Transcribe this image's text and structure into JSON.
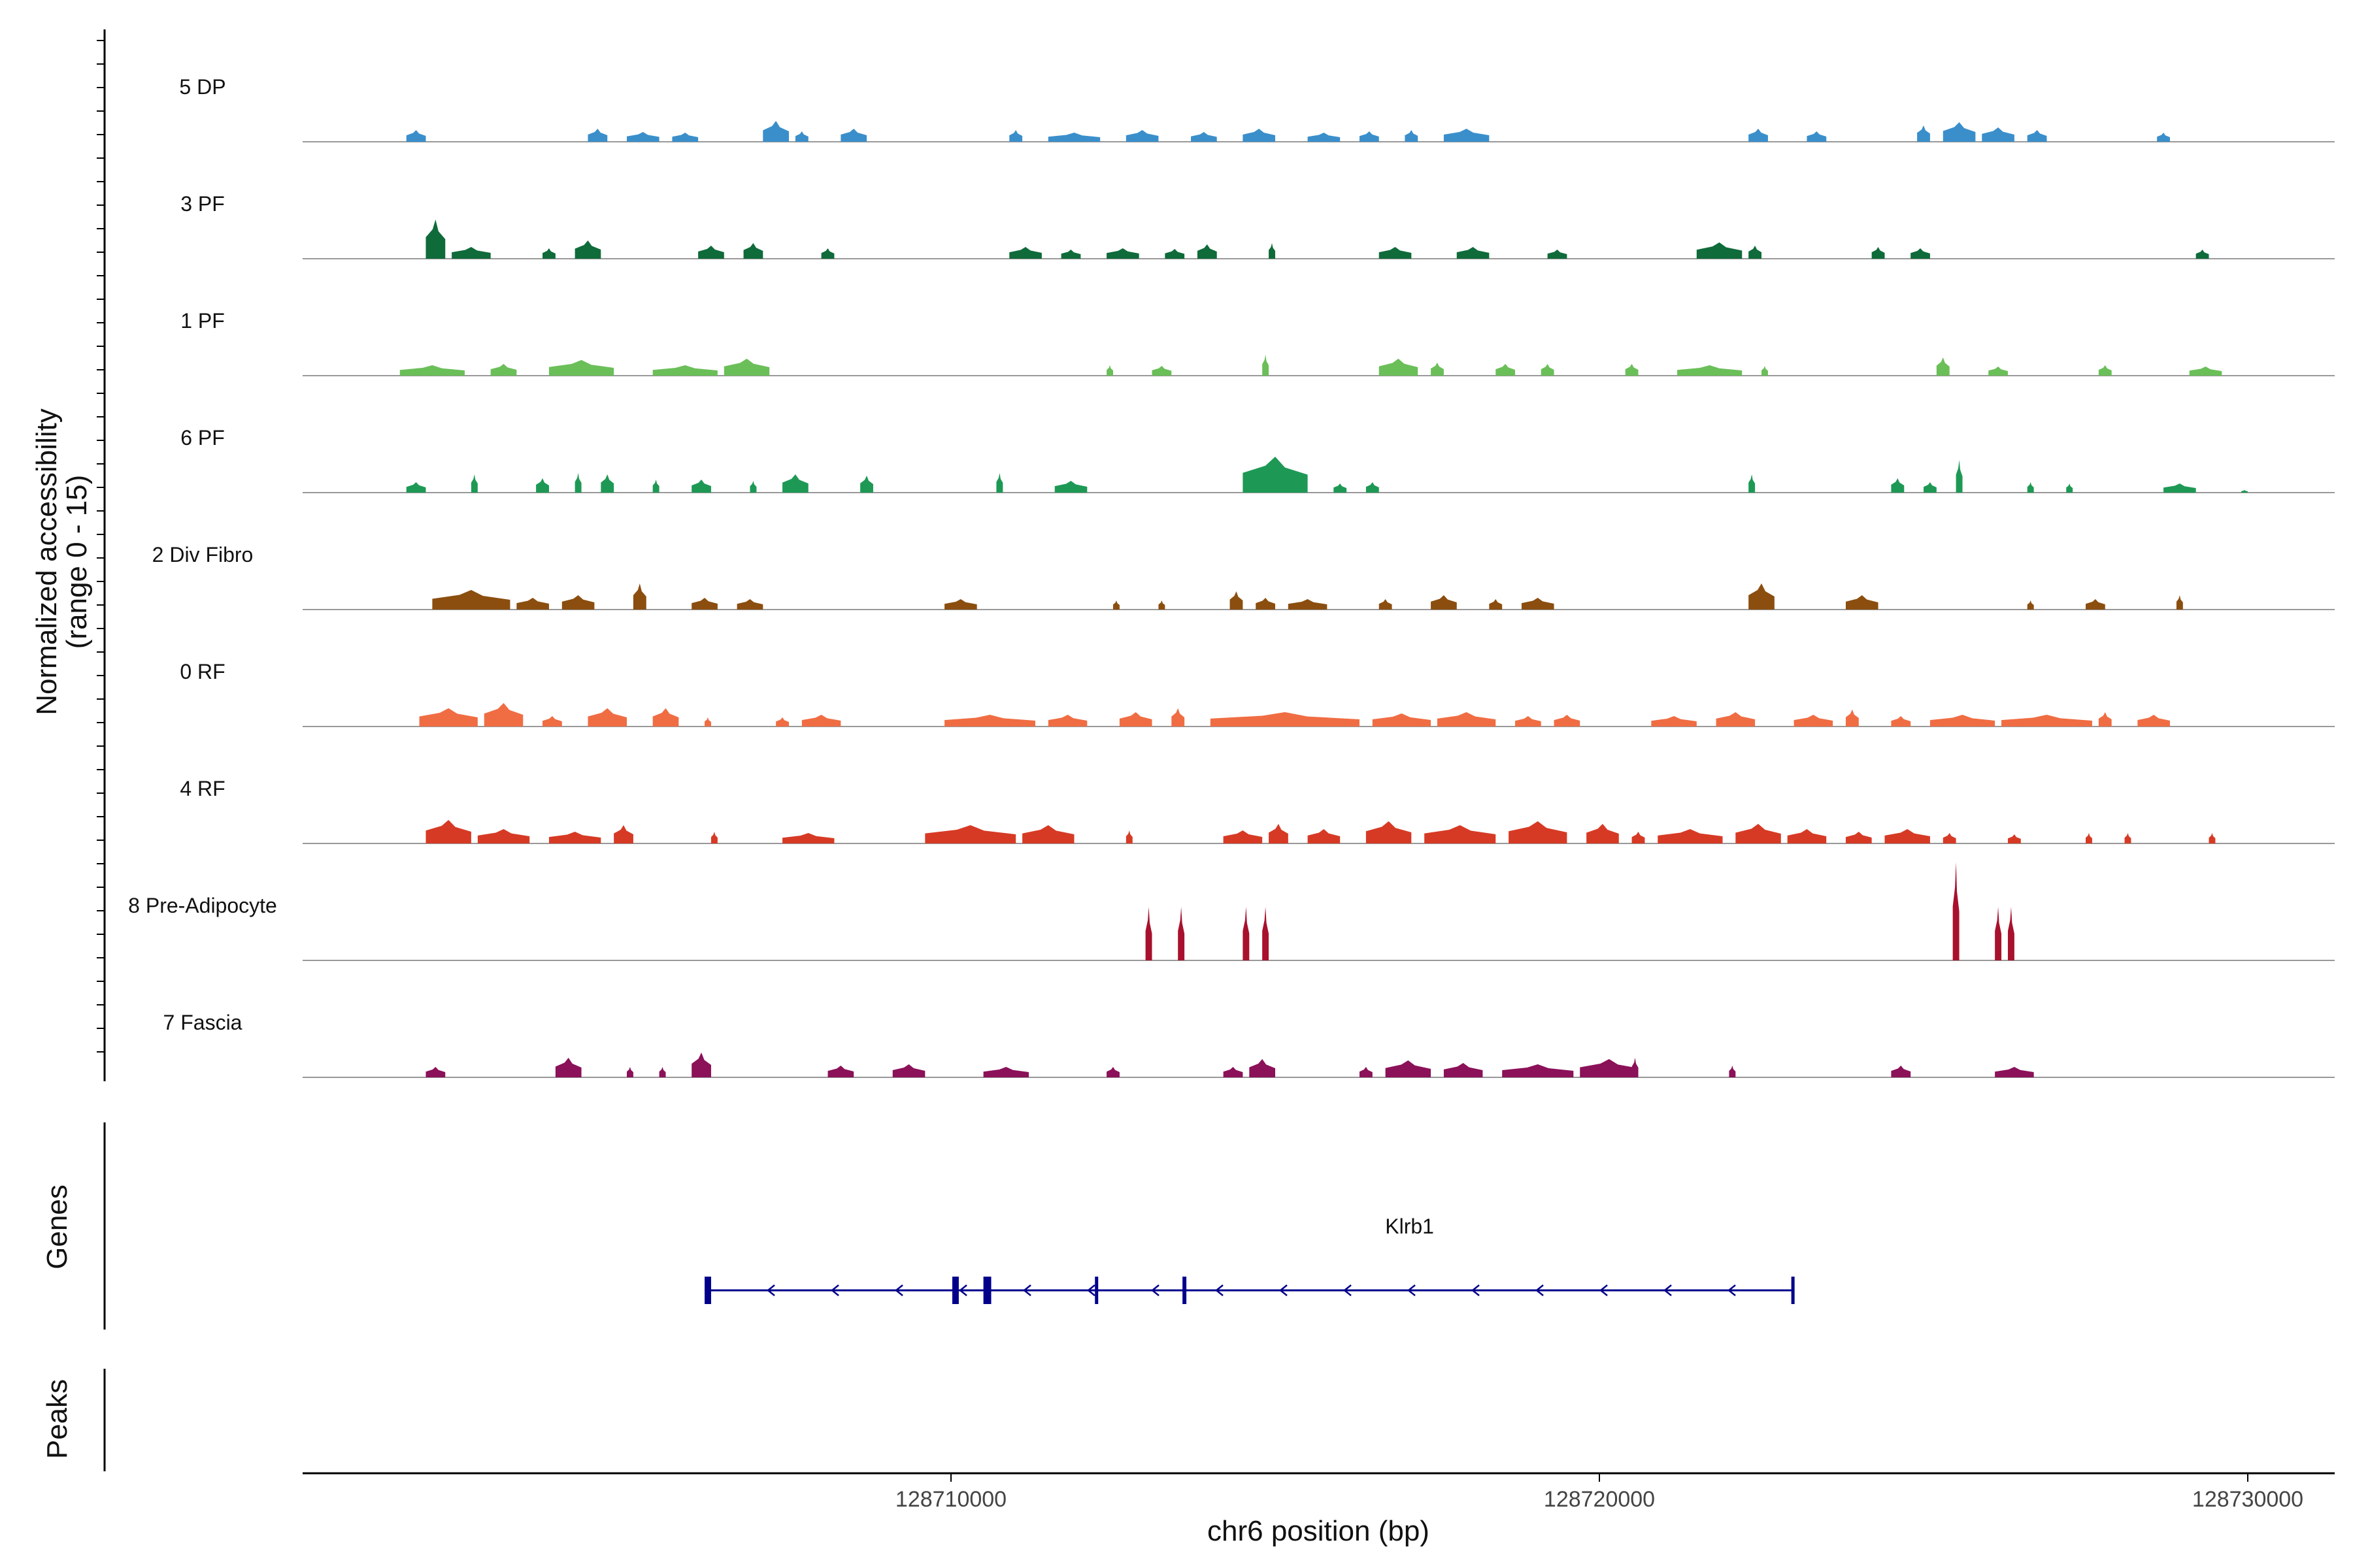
{
  "chart_data": {
    "type": "area",
    "title": "",
    "ylabel_line1": "Normalized accessibility",
    "ylabel_line2": "(range 0 - 15)",
    "ylim": [
      0,
      15
    ],
    "xlabel": "chr6 position (bp)",
    "xlim": [
      128700000,
      128731500
    ],
    "xticks": [
      128710000,
      128720000,
      128730000
    ],
    "xtick_labels": [
      "128710000",
      "128720000",
      "128730000"
    ],
    "series": [
      {
        "name": "5 DP",
        "color": "#3A8FCB",
        "peaks": [
          [
            128701600,
            128701900,
            1.8
          ],
          [
            128704400,
            128704700,
            2.0
          ],
          [
            128705000,
            128705500,
            1.5
          ],
          [
            128705700,
            128706100,
            1.4
          ],
          [
            128707100,
            128707500,
            3.2
          ],
          [
            128707600,
            128707800,
            1.6
          ],
          [
            128708300,
            128708700,
            2.0
          ],
          [
            128710900,
            128711100,
            1.8
          ],
          [
            128711500,
            128712300,
            1.4
          ],
          [
            128712700,
            128713200,
            1.8
          ],
          [
            128713700,
            128714100,
            1.5
          ],
          [
            128714500,
            128715000,
            2.0
          ],
          [
            128715500,
            128716000,
            1.4
          ],
          [
            128716300,
            128716600,
            1.6
          ],
          [
            128717000,
            128717200,
            1.8
          ],
          [
            128717600,
            128718300,
            2.0
          ],
          [
            128722300,
            128722600,
            2.0
          ],
          [
            128723200,
            128723500,
            1.6
          ],
          [
            128724900,
            128725100,
            2.5
          ],
          [
            128725300,
            128725800,
            3.0
          ],
          [
            128725900,
            128726400,
            2.2
          ],
          [
            128726600,
            128726900,
            1.8
          ],
          [
            128728600,
            128728800,
            1.4
          ]
        ]
      },
      {
        "name": "3 PF",
        "color": "#0F6B3A",
        "peaks": [
          [
            128701900,
            128702200,
            6.0
          ],
          [
            128702300,
            128702900,
            1.8
          ],
          [
            128703700,
            128703900,
            1.6
          ],
          [
            128704200,
            128704600,
            2.8
          ],
          [
            128706100,
            128706500,
            2.0
          ],
          [
            128706800,
            128707100,
            2.4
          ],
          [
            128708000,
            128708200,
            1.6
          ],
          [
            128710900,
            128711400,
            1.8
          ],
          [
            128711700,
            128712000,
            1.4
          ],
          [
            128712400,
            128712900,
            1.6
          ],
          [
            128713300,
            128713600,
            1.5
          ],
          [
            128713800,
            128714100,
            2.2
          ],
          [
            128714900,
            128715000,
            2.4
          ],
          [
            128716600,
            128717100,
            1.8
          ],
          [
            128717800,
            128718300,
            1.8
          ],
          [
            128719200,
            128719500,
            1.4
          ],
          [
            128721500,
            128722200,
            2.5
          ],
          [
            128722300,
            128722500,
            2.0
          ],
          [
            128724200,
            128724400,
            1.8
          ],
          [
            128724800,
            128725100,
            1.6
          ],
          [
            128729200,
            128729400,
            1.4
          ]
        ]
      },
      {
        "name": "1 PF",
        "color": "#6BBF59",
        "peaks": [
          [
            128701500,
            128702500,
            1.6
          ],
          [
            128702900,
            128703300,
            1.8
          ],
          [
            128703800,
            128704800,
            2.4
          ],
          [
            128705400,
            128706400,
            1.6
          ],
          [
            128706500,
            128707200,
            2.6
          ],
          [
            128712400,
            128712500,
            1.6
          ],
          [
            128713100,
            128713400,
            1.5
          ],
          [
            128714800,
            128714900,
            3.2
          ],
          [
            128716600,
            128717200,
            2.6
          ],
          [
            128717400,
            128717600,
            2.0
          ],
          [
            128718400,
            128718700,
            1.8
          ],
          [
            128719100,
            128719300,
            1.8
          ],
          [
            128720400,
            128720600,
            1.8
          ],
          [
            128721200,
            128722200,
            1.6
          ],
          [
            128722500,
            128722600,
            1.5
          ],
          [
            128725200,
            128725400,
            2.8
          ],
          [
            128726000,
            128726300,
            1.4
          ],
          [
            128727700,
            128727900,
            1.6
          ],
          [
            128729100,
            128729600,
            1.4
          ]
        ]
      },
      {
        "name": "6 PF",
        "color": "#1E9955",
        "peaks": [
          [
            128701600,
            128701900,
            1.6
          ],
          [
            128702600,
            128702700,
            2.8
          ],
          [
            128703600,
            128703800,
            2.2
          ],
          [
            128704200,
            128704300,
            3.0
          ],
          [
            128704600,
            128704800,
            2.8
          ],
          [
            128705400,
            128705500,
            2.0
          ],
          [
            128706000,
            128706300,
            2.0
          ],
          [
            128706900,
            128707000,
            1.8
          ],
          [
            128707400,
            128707800,
            2.8
          ],
          [
            128708600,
            128708800,
            2.6
          ],
          [
            128710700,
            128710800,
            3.0
          ],
          [
            128711600,
            128712100,
            1.8
          ],
          [
            128714500,
            128715500,
            5.5
          ],
          [
            128715900,
            128716100,
            1.4
          ],
          [
            128716400,
            128716600,
            1.6
          ],
          [
            128722300,
            128722400,
            2.8
          ],
          [
            128724500,
            128724700,
            2.2
          ],
          [
            128725000,
            128725200,
            1.6
          ],
          [
            128725500,
            128725600,
            5.0
          ],
          [
            128726600,
            128726700,
            1.6
          ],
          [
            128727200,
            128727300,
            1.4
          ],
          [
            128728700,
            128729200,
            1.4
          ],
          [
            128729900,
            128730000,
            0.4
          ]
        ]
      },
      {
        "name": "2 Div Fibro",
        "color": "#8B4E0F",
        "peaks": [
          [
            128702000,
            128703200,
            3.0
          ],
          [
            128703300,
            128703800,
            1.8
          ],
          [
            128704000,
            128704500,
            2.2
          ],
          [
            128705100,
            128705300,
            4.0
          ],
          [
            128706000,
            128706400,
            1.8
          ],
          [
            128706700,
            128707100,
            1.6
          ],
          [
            128709900,
            128710400,
            1.6
          ],
          [
            128712500,
            128712600,
            1.4
          ],
          [
            128713200,
            128713300,
            1.4
          ],
          [
            128714300,
            128714500,
            2.8
          ],
          [
            128714700,
            128715000,
            1.8
          ],
          [
            128715200,
            128715800,
            1.6
          ],
          [
            128716600,
            128716800,
            1.6
          ],
          [
            128717400,
            128717800,
            2.2
          ],
          [
            128718300,
            128718500,
            1.6
          ],
          [
            128718800,
            128719300,
            1.8
          ],
          [
            128722300,
            128722700,
            4.0
          ],
          [
            128723800,
            128724300,
            2.2
          ],
          [
            128726600,
            128726700,
            1.4
          ],
          [
            128727500,
            128727800,
            1.6
          ],
          [
            128728900,
            128729000,
            2.2
          ]
        ]
      },
      {
        "name": "0 RF",
        "color": "#F06D43",
        "peaks": [
          [
            128701800,
            128702700,
            2.8
          ],
          [
            128702800,
            128703400,
            3.6
          ],
          [
            128703700,
            128704000,
            1.6
          ],
          [
            128704400,
            128705000,
            2.8
          ],
          [
            128705400,
            128705800,
            2.8
          ],
          [
            128706200,
            128706300,
            1.4
          ],
          [
            128707300,
            128707500,
            1.4
          ],
          [
            128707700,
            128708300,
            1.8
          ],
          [
            128709900,
            128711300,
            1.8
          ],
          [
            128711500,
            128712100,
            1.8
          ],
          [
            128712600,
            128713100,
            2.2
          ],
          [
            128713400,
            128713600,
            2.8
          ],
          [
            128714000,
            128716300,
            2.2
          ],
          [
            128716500,
            128717400,
            2.0
          ],
          [
            128717500,
            128718400,
            2.2
          ],
          [
            128718700,
            128719100,
            1.6
          ],
          [
            128719300,
            128719700,
            1.8
          ],
          [
            128720800,
            128721500,
            1.6
          ],
          [
            128721800,
            128722400,
            2.2
          ],
          [
            128723000,
            128723600,
            1.8
          ],
          [
            128723800,
            128724000,
            2.6
          ],
          [
            128724500,
            128724800,
            1.6
          ],
          [
            128725100,
            128726100,
            1.8
          ],
          [
            128726200,
            128727600,
            1.8
          ],
          [
            128727700,
            128727900,
            2.2
          ],
          [
            128728300,
            128728800,
            1.8
          ]
        ]
      },
      {
        "name": "4 RF",
        "color": "#D63A25",
        "peaks": [
          [
            128701900,
            128702600,
            3.6
          ],
          [
            128702700,
            128703500,
            2.2
          ],
          [
            128703800,
            128704600,
            1.8
          ],
          [
            128704800,
            128705100,
            2.8
          ],
          [
            128706300,
            128706400,
            1.8
          ],
          [
            128707400,
            128708200,
            1.6
          ],
          [
            128709600,
            128711000,
            2.8
          ],
          [
            128711100,
            128711900,
            2.8
          ],
          [
            128712700,
            128712800,
            2.0
          ],
          [
            128714200,
            128714800,
            2.0
          ],
          [
            128714900,
            128715200,
            3.0
          ],
          [
            128715500,
            128716000,
            2.2
          ],
          [
            128716400,
            128717100,
            3.4
          ],
          [
            128717300,
            128718400,
            2.8
          ],
          [
            128718600,
            128719500,
            3.4
          ],
          [
            128719800,
            128720300,
            3.0
          ],
          [
            128720500,
            128720700,
            1.8
          ],
          [
            128720900,
            128721900,
            2.2
          ],
          [
            128722100,
            128722800,
            3.0
          ],
          [
            128722900,
            128723500,
            2.2
          ],
          [
            128723800,
            128724200,
            1.8
          ],
          [
            128724400,
            128725100,
            2.2
          ],
          [
            128725300,
            128725500,
            1.6
          ],
          [
            128726300,
            128726500,
            1.4
          ],
          [
            128727500,
            128727600,
            1.6
          ],
          [
            128728100,
            128728200,
            1.6
          ],
          [
            128729400,
            128729500,
            1.6
          ]
        ]
      },
      {
        "name": "8 Pre-Adipocyte",
        "color": "#A8112D",
        "peaks": [
          [
            128713000,
            128713100,
            8.2
          ],
          [
            128713500,
            128713600,
            8.2
          ],
          [
            128714500,
            128714600,
            8.2
          ],
          [
            128714800,
            128714900,
            8.2
          ],
          [
            128725450,
            128725550,
            15.0
          ],
          [
            128726100,
            128726200,
            8.2
          ],
          [
            128726300,
            128726400,
            8.2
          ]
        ]
      },
      {
        "name": "7 Fascia",
        "color": "#8B1159",
        "peaks": [
          [
            128701900,
            128702200,
            1.6
          ],
          [
            128703900,
            128704300,
            3.0
          ],
          [
            128705000,
            128705100,
            1.6
          ],
          [
            128705500,
            128705600,
            1.6
          ],
          [
            128706000,
            128706300,
            3.8
          ],
          [
            128708100,
            128708500,
            1.8
          ],
          [
            128709100,
            128709600,
            2.0
          ],
          [
            128710500,
            128711200,
            1.6
          ],
          [
            128712400,
            128712600,
            1.6
          ],
          [
            128714200,
            128714500,
            1.6
          ],
          [
            128714600,
            128715000,
            2.8
          ],
          [
            128716300,
            128716500,
            1.6
          ],
          [
            128716700,
            128717400,
            2.6
          ],
          [
            128717600,
            128718200,
            2.2
          ],
          [
            128718500,
            128719600,
            2.0
          ],
          [
            128719700,
            128720600,
            2.8
          ],
          [
            128720500,
            128720600,
            3.0
          ],
          [
            128722000,
            128722100,
            1.8
          ],
          [
            128724500,
            128724800,
            1.8
          ],
          [
            128726100,
            128726700,
            1.6
          ]
        ]
      }
    ],
    "genes": [
      {
        "name": "Klrb1",
        "strand": "-",
        "start": 128706200,
        "end": 128723000,
        "exons": [
          [
            128706200,
            128706300
          ],
          [
            128710020,
            128710120
          ],
          [
            128710500,
            128710620
          ],
          [
            128712220,
            128712260
          ],
          [
            128713570,
            128713630
          ],
          [
            128722960,
            128723000
          ]
        ]
      }
    ],
    "gene_track_label": "Genes",
    "peak_track_label": "Peaks",
    "peaks_track": []
  }
}
